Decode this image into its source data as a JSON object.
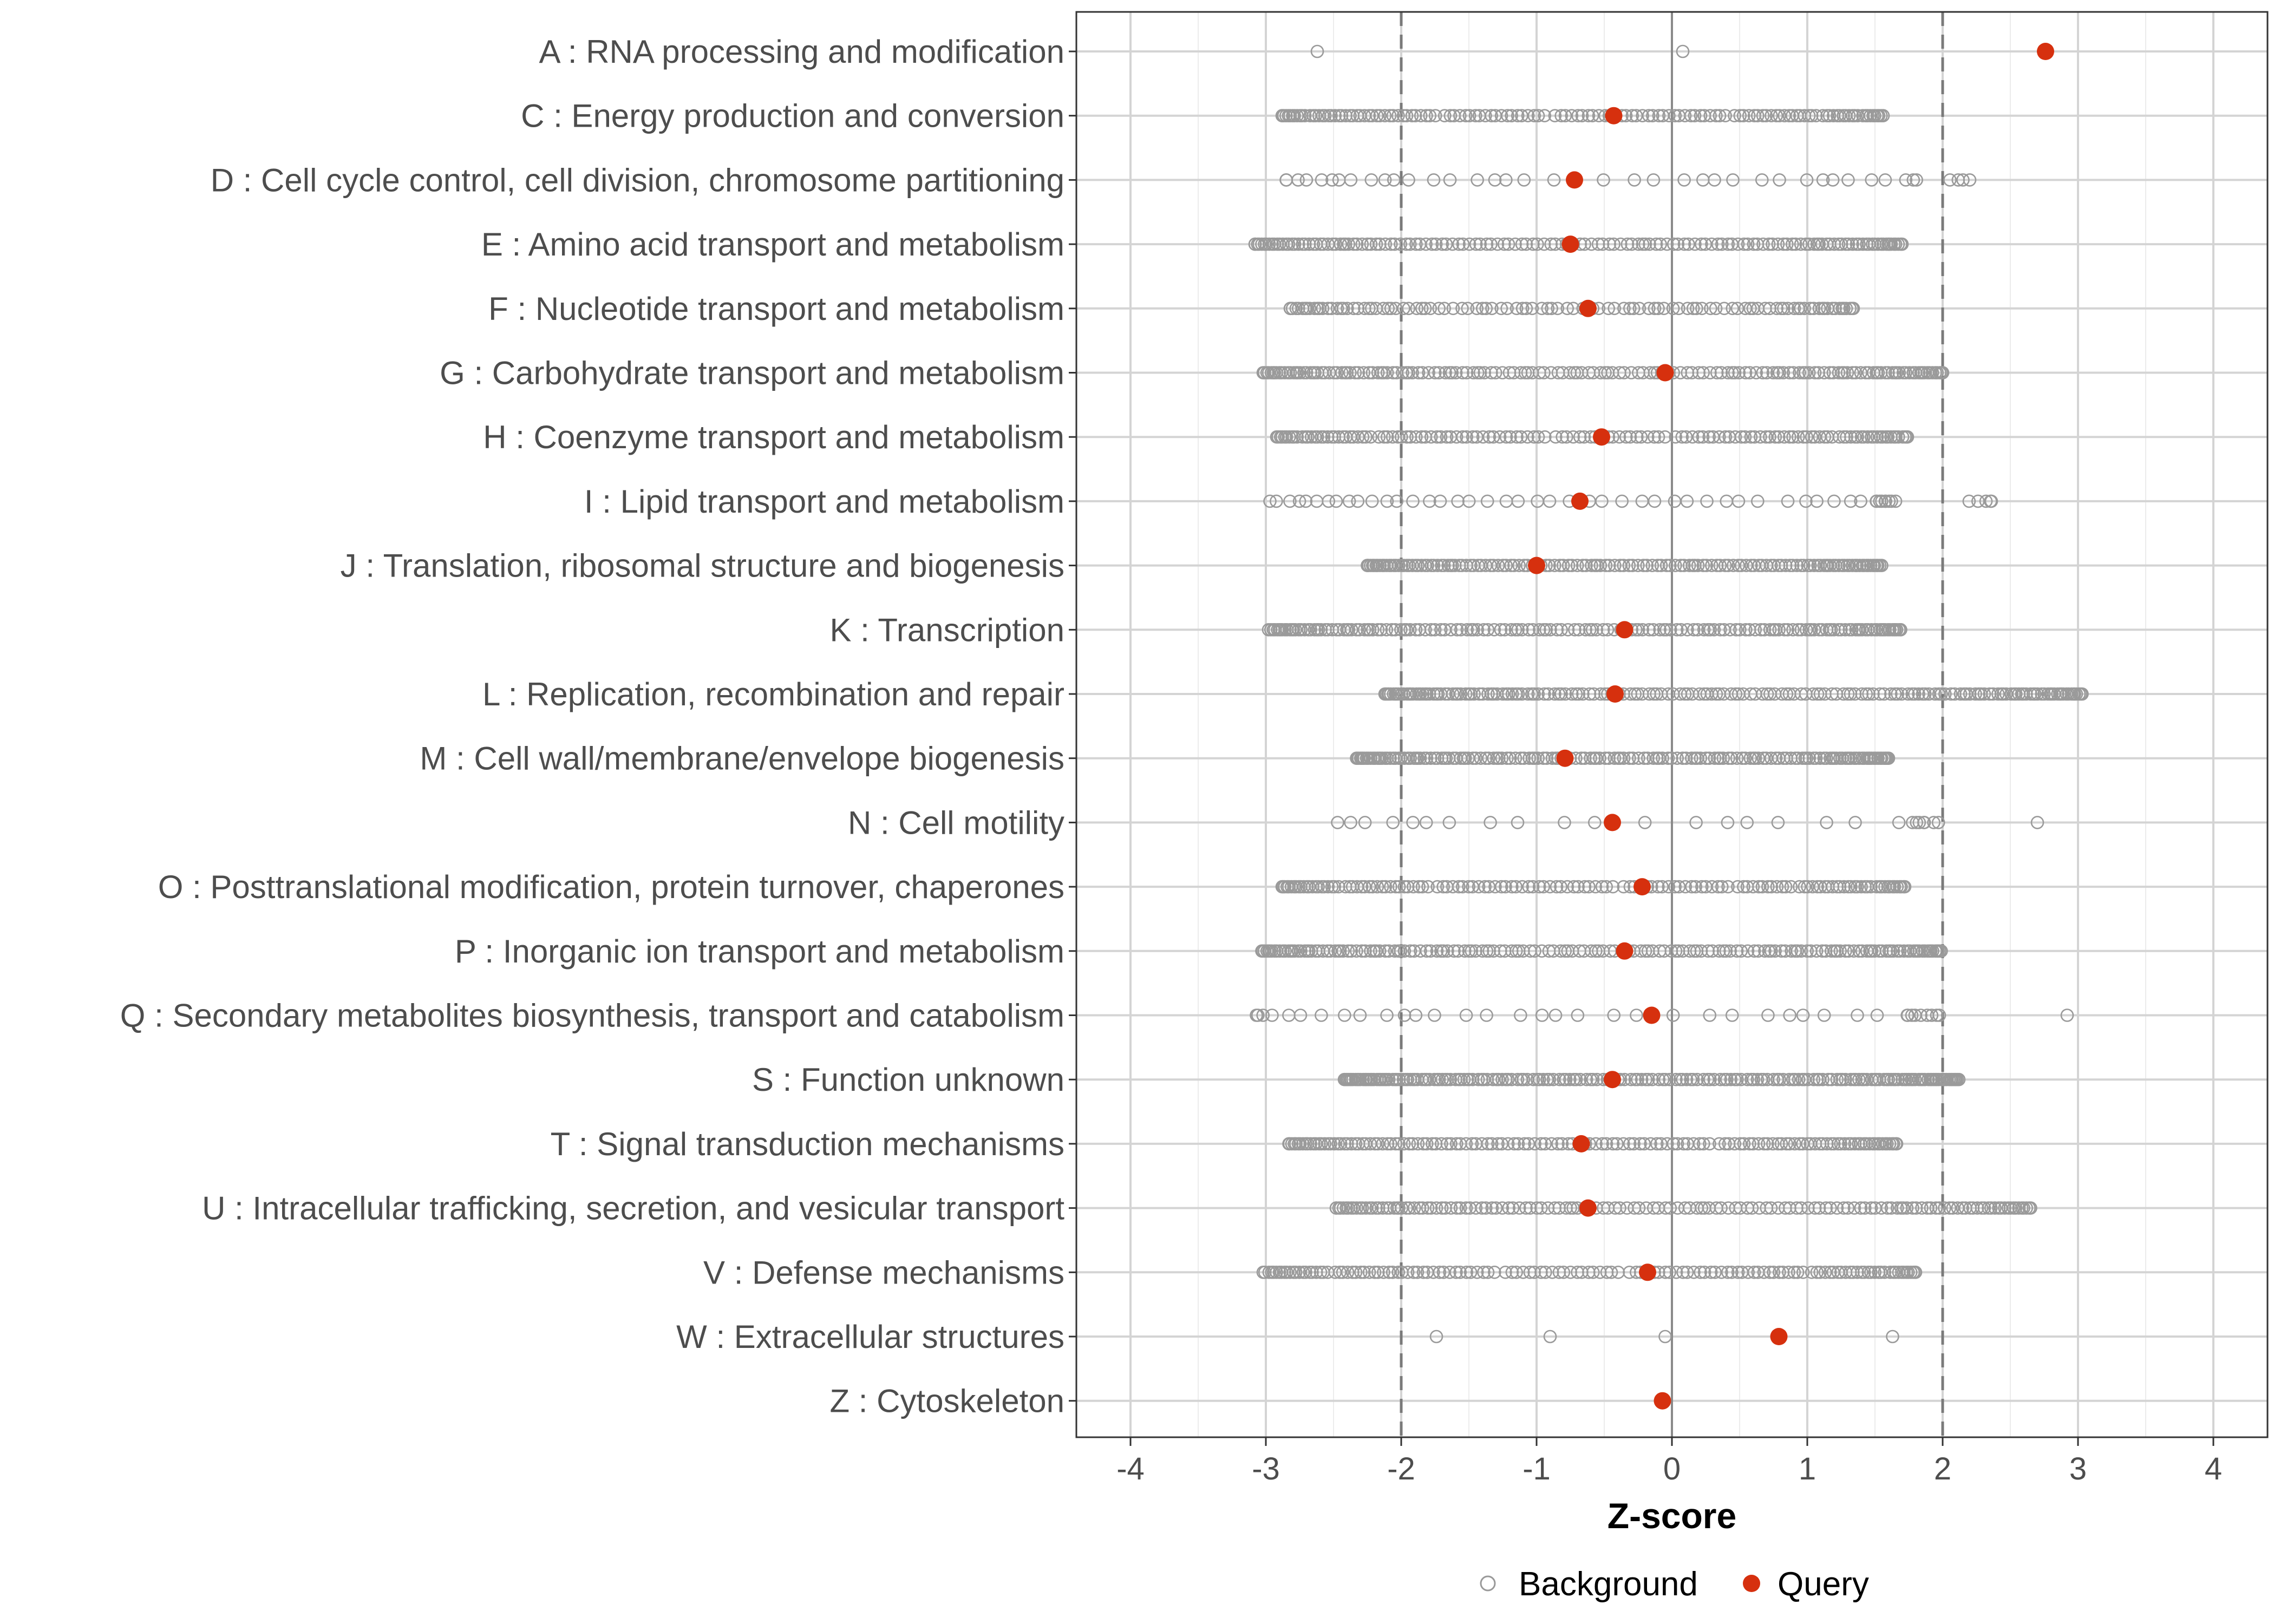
{
  "chart_data": {
    "type": "scatter",
    "xlabel": "Z-score",
    "ylabel": "",
    "xlim": [
      -4.4,
      4.4
    ],
    "xticks": [
      -4,
      -3,
      -2,
      -1,
      0,
      1,
      2,
      3,
      4
    ],
    "xtick_labels": [
      "-4",
      "-3",
      "-2",
      "-1",
      "0",
      "1",
      "2",
      "3",
      "4"
    ],
    "threshold_lines": [
      -2,
      2
    ],
    "zero_line": 0,
    "grid": true,
    "legend_position": "bottom",
    "legend": [
      {
        "name": "Background",
        "marker": "open-circle",
        "color": "#999999"
      },
      {
        "name": "Query",
        "marker": "filled-circle",
        "color": "#d6300e"
      }
    ],
    "categories": [
      {
        "label": "A : RNA processing and modification",
        "query": 2.76,
        "background_min": -2.62,
        "background_max": 0.08,
        "background_count": 2,
        "background_gap": [],
        "background_points": [
          -2.62,
          0.08
        ]
      },
      {
        "label": "C : Energy production and conversion",
        "query": -0.43,
        "background_min": -2.88,
        "background_max": 1.56,
        "background_count": 140,
        "background_gap": []
      },
      {
        "label": "D : Cell cycle control, cell division, chromosome partitioning",
        "query": -0.72,
        "background_min": -2.85,
        "background_max": 2.2,
        "background_count": 42,
        "background_gap": [
          1.82,
          2.05
        ]
      },
      {
        "label": "E : Amino acid transport and metabolism",
        "query": -0.75,
        "background_min": -3.08,
        "background_max": 1.7,
        "background_count": 150,
        "background_gap": []
      },
      {
        "label": "F : Nucleotide transport and metabolism",
        "query": -0.62,
        "background_min": -2.82,
        "background_max": 1.34,
        "background_count": 110,
        "background_gap": []
      },
      {
        "label": "G : Carbohydrate transport and metabolism",
        "query": -0.05,
        "background_min": -3.02,
        "background_max": 2.0,
        "background_count": 165,
        "background_gap": []
      },
      {
        "label": "H : Coenzyme transport and metabolism",
        "query": -0.52,
        "background_min": -2.92,
        "background_max": 1.74,
        "background_count": 140,
        "background_gap": []
      },
      {
        "label": "I : Lipid transport and metabolism",
        "query": -0.68,
        "background_min": -2.97,
        "background_max": 2.36,
        "background_count": 55,
        "background_gap": [
          1.66,
          2.18
        ]
      },
      {
        "label": "J : Translation, ribosomal structure and biogenesis",
        "query": -1.0,
        "background_min": -2.25,
        "background_max": 1.55,
        "background_count": 150,
        "background_gap": []
      },
      {
        "label": "K : Transcription",
        "query": -0.35,
        "background_min": -2.98,
        "background_max": 1.69,
        "background_count": 165,
        "background_gap": []
      },
      {
        "label": "L : Replication, recombination and repair",
        "query": -0.42,
        "background_min": -2.12,
        "background_max": 3.03,
        "background_count": 185,
        "background_gap": []
      },
      {
        "label": "M : Cell wall/membrane/envelope biogenesis",
        "query": -0.79,
        "background_min": -2.33,
        "background_max": 1.6,
        "background_count": 165,
        "background_gap": []
      },
      {
        "label": "N : Cell motility",
        "query": -0.44,
        "background_min": -2.47,
        "background_max": 2.7,
        "background_count": 28,
        "background_gap": [
          1.98,
          2.68
        ]
      },
      {
        "label": "O : Posttranslational modification, protein turnover, chaperones",
        "query": -0.22,
        "background_min": -2.88,
        "background_max": 1.72,
        "background_count": 140,
        "background_gap": []
      },
      {
        "label": "P : Inorganic ion transport and metabolism",
        "query": -0.35,
        "background_min": -3.03,
        "background_max": 1.99,
        "background_count": 170,
        "background_gap": []
      },
      {
        "label": "Q : Secondary metabolites biosynthesis, transport and catabolism",
        "query": -0.15,
        "background_min": -3.07,
        "background_max": 2.92,
        "background_count": 40,
        "background_gap": [
          2.0,
          2.9
        ]
      },
      {
        "label": "S : Function unknown",
        "query": -0.44,
        "background_min": -2.42,
        "background_max": 2.12,
        "background_count": 200,
        "background_gap": []
      },
      {
        "label": "T : Signal transduction mechanisms",
        "query": -0.67,
        "background_min": -2.83,
        "background_max": 1.66,
        "background_count": 145,
        "background_gap": []
      },
      {
        "label": "U : Intracellular trafficking, secretion, and vesicular transport",
        "query": -0.62,
        "background_min": -2.48,
        "background_max": 2.65,
        "background_count": 150,
        "background_gap": []
      },
      {
        "label": "V : Defense mechanisms",
        "query": -0.18,
        "background_min": -3.02,
        "background_max": 1.8,
        "background_count": 140,
        "background_gap": []
      },
      {
        "label": "W : Extracellular structures",
        "query": 0.79,
        "background_min": -1.74,
        "background_max": 1.63,
        "background_count": 4,
        "background_gap": [],
        "background_points": [
          -1.74,
          -0.9,
          -0.05,
          1.63
        ]
      },
      {
        "label": "Z : Cytoskeleton",
        "query": -0.07,
        "background_min": null,
        "background_max": null,
        "background_count": 0,
        "background_gap": [],
        "background_points": []
      }
    ]
  }
}
